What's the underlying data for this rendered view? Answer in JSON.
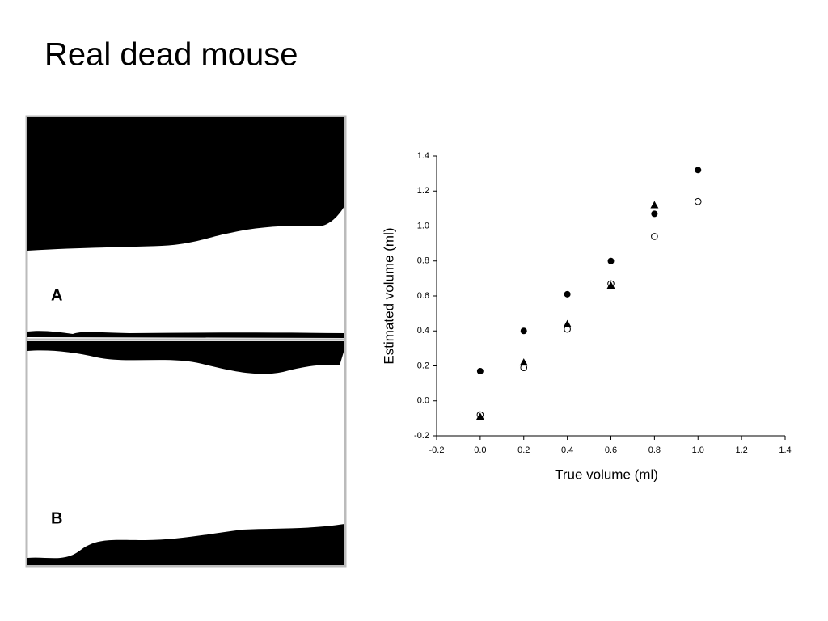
{
  "title": "Real dead mouse",
  "panels": [
    "A",
    "B"
  ],
  "chart_data": {
    "type": "scatter",
    "xlabel": "True volume (ml)",
    "ylabel": "Estimated volume (ml)",
    "xlim": [
      -0.2,
      1.4
    ],
    "ylim": [
      -0.2,
      1.4
    ],
    "xticks": [
      -0.2,
      {
        "value": 0,
        "label": "0.0"
      },
      0.2,
      0.4,
      0.6,
      0.8,
      {
        "value": 1,
        "label": "1.0"
      },
      1.2,
      1.4
    ],
    "yticks": [
      -0.2,
      {
        "value": 0,
        "label": "0.0"
      },
      0.2,
      0.4,
      0.6,
      0.8,
      {
        "value": 1,
        "label": "1.0"
      },
      1.2,
      1.4
    ],
    "series": [
      {
        "color": "#000000",
        "marker": "filled-circle",
        "x": [
          0,
          0.2,
          0.4,
          0.6,
          0.8,
          1.0
        ],
        "values": [
          0.17,
          0.4,
          0.61,
          0.8,
          1.07,
          1.32
        ]
      },
      {
        "color": "#000000",
        "marker": "open-circle",
        "x": [
          0,
          0.2,
          0.4,
          0.6,
          0.8,
          1.0
        ],
        "values": [
          -0.08,
          0.19,
          0.41,
          0.67,
          0.94,
          1.14
        ]
      },
      {
        "color": "#000000",
        "marker": "triangle",
        "x": [
          0,
          0.2,
          0.4,
          0.6,
          0.8
        ],
        "values": [
          -0.09,
          0.22,
          0.44,
          0.66,
          1.12
        ]
      }
    ]
  }
}
